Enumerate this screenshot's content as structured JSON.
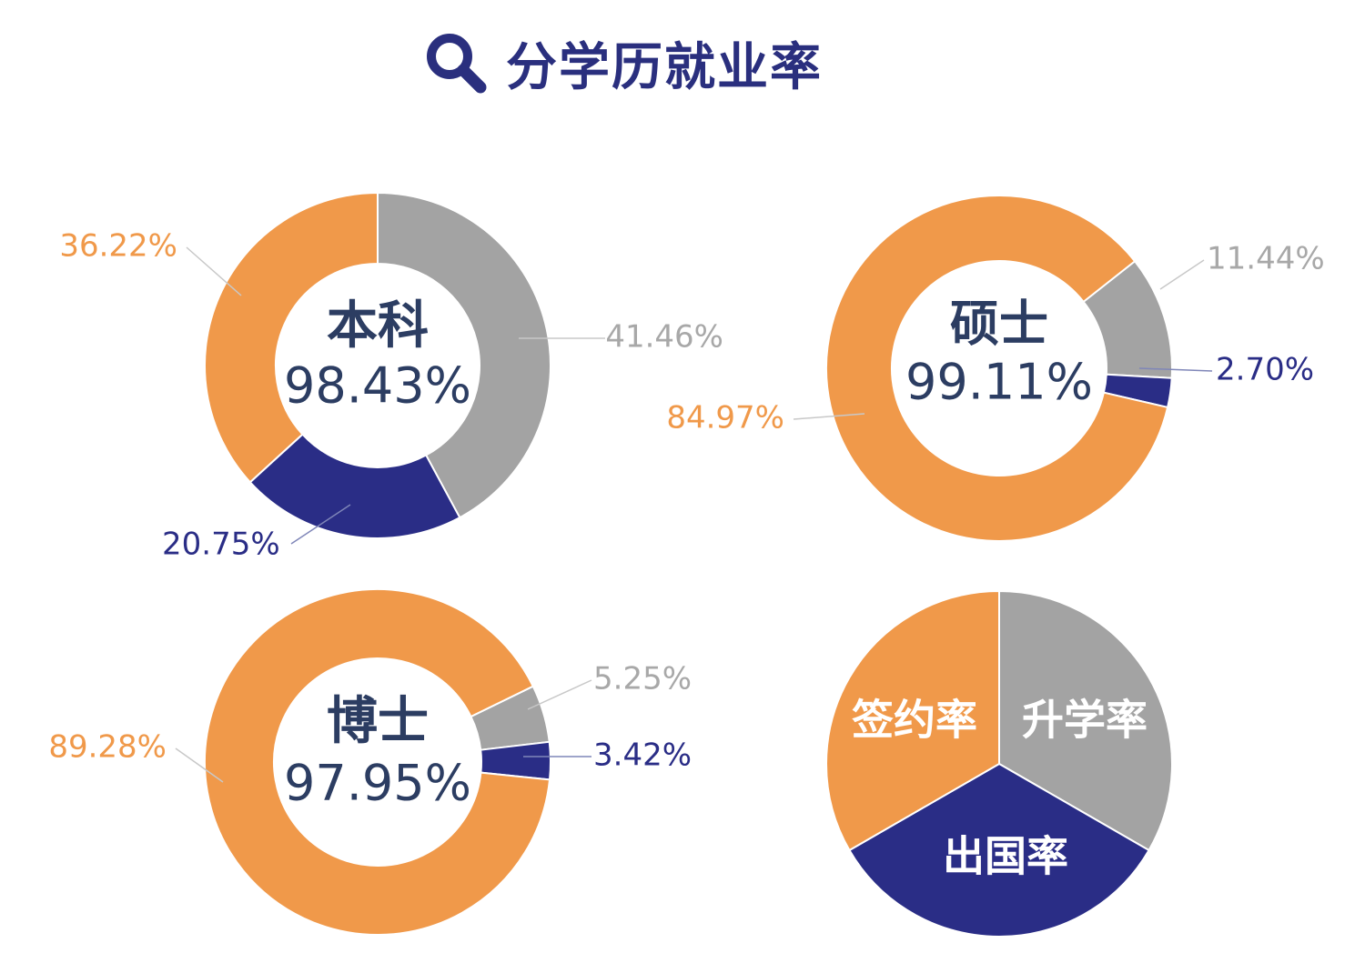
{
  "header": {
    "title": "分学历就业率",
    "icon": "search-icon"
  },
  "colors": {
    "sign": "#f0994a",
    "study": "#a3a3a3",
    "abroad": "#2a2d86",
    "text_dark": "#2c3d62",
    "header": "#2a2f7e"
  },
  "chart_data": [
    {
      "type": "pie",
      "variant": "donut",
      "center_label": "本科",
      "center_value": "98.43%",
      "slices": [
        {
          "value": 41.46,
          "label": "41.46%",
          "color_key": "study"
        },
        {
          "value": 20.75,
          "label": "20.75%",
          "color_key": "abroad"
        },
        {
          "value": 36.22,
          "label": "36.22%",
          "color_key": "sign"
        }
      ]
    },
    {
      "type": "pie",
      "variant": "donut",
      "center_label": "硕士",
      "center_value": "99.11%",
      "slices": [
        {
          "value": 11.44,
          "label": "11.44%",
          "color_key": "study"
        },
        {
          "value": 2.7,
          "label": "2.70%",
          "color_key": "abroad"
        },
        {
          "value": 84.97,
          "label": "84.97%",
          "color_key": "sign"
        }
      ]
    },
    {
      "type": "pie",
      "variant": "donut",
      "center_label": "博士",
      "center_value": "97.95%",
      "slices": [
        {
          "value": 5.25,
          "label": "5.25%",
          "color_key": "study"
        },
        {
          "value": 3.42,
          "label": "3.42%",
          "color_key": "abroad"
        },
        {
          "value": 89.28,
          "label": "89.28%",
          "color_key": "sign"
        }
      ]
    },
    {
      "type": "pie",
      "variant": "legend-pie",
      "slices": [
        {
          "value": 1,
          "label": "升学率",
          "color_key": "study"
        },
        {
          "value": 1,
          "label": "出国率",
          "color_key": "abroad"
        },
        {
          "value": 1,
          "label": "签约率",
          "color_key": "sign"
        }
      ]
    }
  ]
}
